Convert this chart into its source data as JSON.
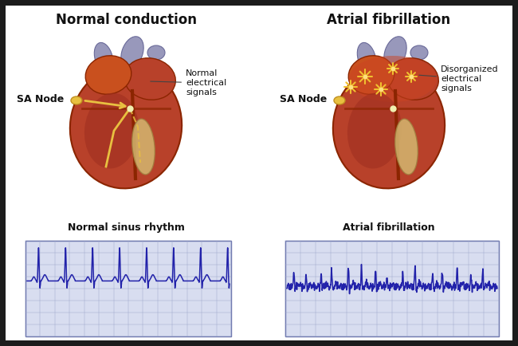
{
  "title_left": "Normal conduction",
  "title_right": "Atrial fibrillation",
  "label_left_annotation": "Normal\nelectrical\nsignals",
  "label_right_annotation": "Disorganized\nelectrical\nsignals",
  "label_sa_left": "SA Node",
  "label_sa_right": "SA Node",
  "ecg_title_left": "Normal sinus rhythm",
  "ecg_title_right": "Atrial fibrillation",
  "bg_color": "#1c1c1c",
  "white_bg": "#ffffff",
  "ecg_bg": "#d8ddf0",
  "ecg_grid_color": "#9ba4c8",
  "ecg_line_color": "#2222aa",
  "text_color": "#111111",
  "title_fontsize": 12,
  "label_fontsize": 8,
  "ecg_label_fontsize": 9,
  "heart_main": "#b8412a",
  "heart_dark": "#8B2500",
  "heart_mid": "#c9501e",
  "heart_light": "#d4612b",
  "vessel_color": "#9898bb",
  "vessel_edge": "#6a6a99",
  "sa_node_color": "#e8c040",
  "conduction_color": "#e8c040",
  "septum_color": "#7B241C",
  "star_color": "#f0c030"
}
